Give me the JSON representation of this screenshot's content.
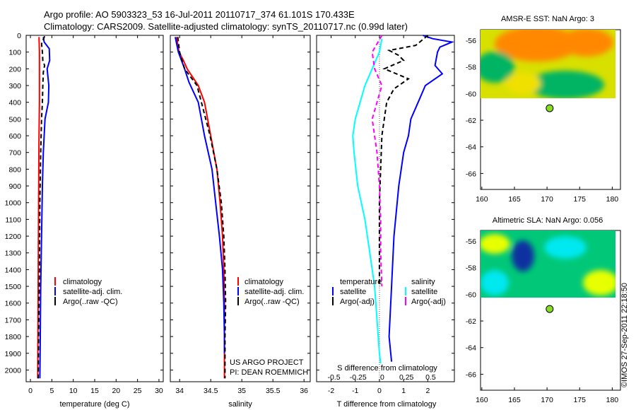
{
  "header": {
    "title_line1": "Argo profile: AO 5903323_53 16-Jul-2011 20110717_374 61.101S 170.433E",
    "title_line2": "Climatology: CARS2009. Satellite-adjusted climatology: synTS_20110717.nc (0.99d later)"
  },
  "colors": {
    "climatology": "#ff0000",
    "satellite": "#0000ff",
    "argo": "#000000",
    "s_satellite": "#00ffff",
    "s_argo": "#ff00ff",
    "float_marker": "#88dd22"
  },
  "chart_data": [
    {
      "type": "line",
      "panel": "temperature",
      "xlabel": "temperature (deg C)",
      "ylabel": "",
      "xlim": [
        -1,
        31
      ],
      "ylim": [
        2070,
        0
      ],
      "xticks": [
        0,
        5,
        10,
        15,
        20,
        25,
        30
      ],
      "yticks": [
        0,
        100,
        200,
        300,
        400,
        500,
        600,
        700,
        800,
        900,
        1000,
        1100,
        1200,
        1300,
        1400,
        1500,
        1600,
        1700,
        1800,
        1900,
        2000
      ],
      "legend": [
        "climatology",
        "satellite-adj. clim.",
        "Argo(..raw -QC)"
      ],
      "legend_position": "lower-right",
      "series": [
        {
          "name": "climatology",
          "color": "#ff0000",
          "points": [
            [
              2.0,
              10
            ],
            [
              2.1,
              100
            ],
            [
              2.1,
              200
            ],
            [
              2.1,
              400
            ],
            [
              2.0,
              600
            ],
            [
              1.9,
              1000
            ],
            [
              1.8,
              1500
            ],
            [
              1.7,
              2050
            ]
          ]
        },
        {
          "name": "satellite-adj. clim.",
          "color": "#0000ff",
          "points": [
            [
              3.0,
              10
            ],
            [
              3.2,
              40
            ],
            [
              4.4,
              80
            ],
            [
              4.5,
              150
            ],
            [
              3.9,
              200
            ],
            [
              4.3,
              300
            ],
            [
              4.2,
              400
            ],
            [
              3.4,
              500
            ],
            [
              3.0,
              700
            ],
            [
              2.8,
              900
            ],
            [
              2.6,
              1200
            ],
            [
              2.4,
              1500
            ],
            [
              2.3,
              1800
            ],
            [
              2.2,
              2050
            ]
          ]
        },
        {
          "name": "Argo(..raw -QC)",
          "color": "#000000",
          "points": [
            [
              3.3,
              5
            ],
            [
              2.6,
              50
            ],
            [
              2.8,
              100
            ],
            [
              2.9,
              150
            ],
            [
              3.3,
              180
            ],
            [
              3.0,
              220
            ],
            [
              2.9,
              300
            ],
            [
              2.8,
              400
            ],
            [
              2.6,
              500
            ],
            [
              2.4,
              700
            ],
            [
              2.2,
              1000
            ],
            [
              2.1,
              1400
            ],
            [
              1.9,
              1800
            ],
            [
              1.8,
              2050
            ]
          ]
        }
      ]
    },
    {
      "type": "line",
      "panel": "salinity",
      "xlabel": "salinity",
      "ylabel": "",
      "xlim": [
        33.85,
        36.1
      ],
      "ylim": [
        2070,
        0
      ],
      "xticks": [
        34,
        34.5,
        35,
        35.5,
        36
      ],
      "yticks": [
        0,
        100,
        200,
        300,
        400,
        500,
        600,
        700,
        800,
        900,
        1000,
        1100,
        1200,
        1300,
        1400,
        1500,
        1600,
        1700,
        1800,
        1900,
        2000
      ],
      "legend": [
        "climatology",
        "satellite-adj. clim.",
        "Argo(..raw -QC)"
      ],
      "legend_position": "lower-right",
      "annotations": [
        "US ARGO PROJECT",
        "PI: DEAN ROEMMICH"
      ],
      "series": [
        {
          "name": "climatology",
          "color": "#ff0000",
          "points": [
            [
              33.95,
              10
            ],
            [
              33.99,
              100
            ],
            [
              34.06,
              150
            ],
            [
              34.12,
              200
            ],
            [
              34.3,
              300
            ],
            [
              34.4,
              400
            ],
            [
              34.5,
              600
            ],
            [
              34.6,
              800
            ],
            [
              34.65,
              1000
            ],
            [
              34.69,
              1200
            ],
            [
              34.71,
              1400
            ],
            [
              34.72,
              1600
            ],
            [
              34.72,
              1800
            ],
            [
              34.72,
              2050
            ]
          ]
        },
        {
          "name": "satellite-adj. clim.",
          "color": "#0000ff",
          "points": [
            [
              33.93,
              10
            ],
            [
              33.98,
              100
            ],
            [
              34.03,
              150
            ],
            [
              34.08,
              200
            ],
            [
              34.15,
              280
            ],
            [
              34.3,
              400
            ],
            [
              34.4,
              600
            ],
            [
              34.52,
              800
            ],
            [
              34.58,
              1000
            ],
            [
              34.64,
              1200
            ],
            [
              34.69,
              1400
            ],
            [
              34.71,
              1600
            ],
            [
              34.72,
              1800
            ],
            [
              34.72,
              1900
            ]
          ]
        },
        {
          "name": "Argo(..raw -QC)",
          "color": "#000000",
          "points": [
            [
              33.97,
              10
            ],
            [
              34.0,
              100
            ],
            [
              34.08,
              200
            ],
            [
              34.28,
              300
            ],
            [
              34.35,
              400
            ],
            [
              34.49,
              600
            ],
            [
              34.6,
              800
            ],
            [
              34.67,
              1000
            ],
            [
              34.71,
              1200
            ],
            [
              34.73,
              1400
            ],
            [
              34.74,
              1600
            ],
            [
              34.73,
              1800
            ],
            [
              34.73,
              2050
            ]
          ]
        }
      ]
    },
    {
      "type": "line",
      "panel": "difference",
      "xlabel": "T difference from climatology",
      "xlabel2": "S difference from climatology",
      "xlim": [
        -2.6,
        3.1
      ],
      "ylim": [
        2070,
        0
      ],
      "xticks": [
        -2,
        -1,
        0,
        1,
        2
      ],
      "xticks_s": [
        -0.5,
        -0.25,
        0,
        0.25,
        0.5
      ],
      "yticks": [
        0,
        100,
        200,
        300,
        400,
        500,
        600,
        700,
        800,
        900,
        1000,
        1100,
        1200,
        1300,
        1400,
        1500,
        1600,
        1700,
        1800,
        1900,
        2000
      ],
      "legend_groups": [
        "temperature",
        "salinity"
      ],
      "legend": [
        "satellite",
        "Argo(-adj)",
        "satellite",
        "Argo(-adj)"
      ],
      "legend_position": "lower-right",
      "series": [
        {
          "name": "satellite",
          "group": "temperature",
          "color": "#0000ff",
          "points": [
            [
              1.8,
              0
            ],
            [
              2.2,
              20
            ],
            [
              3.0,
              40
            ],
            [
              2.5,
              70
            ],
            [
              2.4,
              100
            ],
            [
              2.3,
              180
            ],
            [
              2.6,
              230
            ],
            [
              1.9,
              300
            ],
            [
              1.6,
              400
            ],
            [
              1.3,
              500
            ],
            [
              1.2,
              600
            ],
            [
              1.0,
              700
            ],
            [
              0.8,
              900
            ],
            [
              0.6,
              1200
            ],
            [
              0.5,
              1500
            ],
            [
              0.4,
              1800
            ],
            [
              0.5,
              1950
            ]
          ]
        },
        {
          "name": "Argo(-adj)",
          "group": "temperature",
          "color": "#000000",
          "points": [
            [
              2.0,
              0
            ],
            [
              1.5,
              60
            ],
            [
              0.4,
              90
            ],
            [
              0.8,
              120
            ],
            [
              1.0,
              150
            ],
            [
              0.2,
              200
            ],
            [
              1.2,
              260
            ],
            [
              0.6,
              320
            ],
            [
              0.3,
              400
            ],
            [
              0.1,
              600
            ],
            [
              0.0,
              1000
            ],
            [
              0.0,
              1500
            ]
          ]
        },
        {
          "name": "satellite",
          "group": "salinity",
          "color": "#00ffff",
          "points": [
            [
              0.1,
              20
            ],
            [
              0.0,
              100
            ],
            [
              -0.3,
              200
            ],
            [
              -0.6,
              300
            ],
            [
              -0.8,
              400
            ],
            [
              -1.0,
              500
            ],
            [
              -1.1,
              600
            ],
            [
              -1.05,
              700
            ],
            [
              -0.9,
              900
            ],
            [
              -0.6,
              1100
            ],
            [
              -0.4,
              1300
            ],
            [
              -0.2,
              1500
            ],
            [
              -0.1,
              1700
            ],
            [
              0.0,
              1900
            ],
            [
              0.05,
              1960
            ]
          ]
        },
        {
          "name": "Argo(-adj)",
          "group": "salinity",
          "color": "#ff00ff",
          "points": [
            [
              0.1,
              0
            ],
            [
              -0.3,
              100
            ],
            [
              -0.2,
              200
            ],
            [
              0.1,
              300
            ],
            [
              -0.1,
              400
            ],
            [
              -0.3,
              500
            ],
            [
              -0.1,
              700
            ],
            [
              0.0,
              900
            ],
            [
              0.05,
              1100
            ],
            [
              0.05,
              1300
            ],
            [
              0.1,
              1500
            ]
          ]
        }
      ]
    }
  ],
  "maps": [
    {
      "title": "AMSR-E SST: NaN Argo: 3",
      "xticks": [
        160,
        165,
        170,
        175,
        180
      ],
      "yticks": [
        -56,
        -58,
        -60,
        -62,
        -64,
        -66
      ],
      "xlim": [
        159.8,
        180.5
      ],
      "ylim": [
        -67.2,
        -55.2
      ],
      "float_lon": 170.4,
      "float_lat": -61.1,
      "field_colors": [
        "#d8e000",
        "#ff8800",
        "#00b464",
        "#f0e000"
      ]
    },
    {
      "title": "Altimetric SLA: NaN Argo: 0.056",
      "xticks": [
        160,
        165,
        170,
        175,
        180
      ],
      "yticks": [
        -56,
        -58,
        -60,
        -62,
        -64,
        -66
      ],
      "xlim": [
        159.8,
        180.5
      ],
      "ylim": [
        -67.2,
        -55.2
      ],
      "float_lon": 170.4,
      "float_lat": -61.1,
      "field_colors": [
        "#00c878",
        "#00e8f0",
        "#e8ff00",
        "#1030a0"
      ]
    }
  ],
  "footer": {
    "credit": "©IMOS 27-Sep-2011 22:18:50"
  }
}
